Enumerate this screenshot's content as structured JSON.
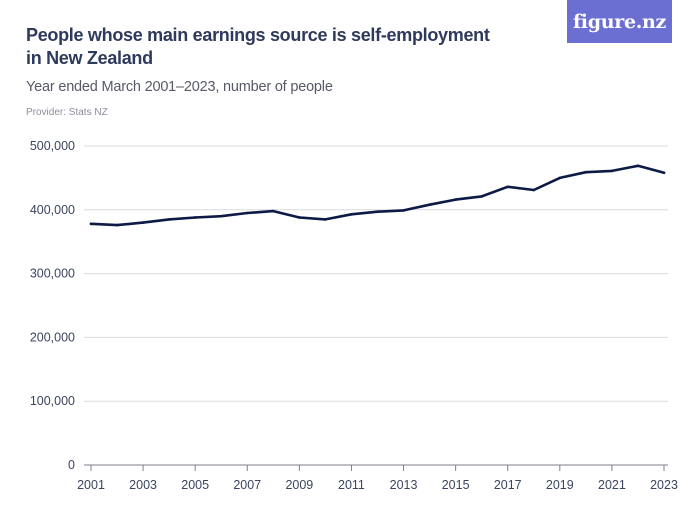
{
  "header": {
    "title": "People whose main earnings source is self-employment in New Zealand",
    "subtitle": "Year ended March 2001–2023, number of people",
    "provider": "Provider: Stats NZ"
  },
  "logo": {
    "text": "figure.nz",
    "background": "#6b6fd1"
  },
  "chart_data": {
    "type": "line",
    "title": "People whose main earnings source is self-employment in New Zealand",
    "subtitle": "Year ended March 2001–2023, number of people",
    "xlabel": "",
    "ylabel": "",
    "ylim": [
      0,
      500000
    ],
    "xlim": [
      2001,
      2023
    ],
    "grid": true,
    "legend": "none",
    "line_color": "#0d1a45",
    "x": [
      2001,
      2002,
      2003,
      2004,
      2005,
      2006,
      2007,
      2008,
      2009,
      2010,
      2011,
      2012,
      2013,
      2014,
      2015,
      2016,
      2017,
      2018,
      2019,
      2020,
      2021,
      2022,
      2023
    ],
    "series": [
      {
        "values": [
          378000,
          376000,
          380000,
          385000,
          388000,
          390000,
          395000,
          398000,
          388000,
          385000,
          393000,
          397000,
          399000,
          408000,
          416000,
          421000,
          436000,
          431000,
          450000,
          459000,
          461000,
          469000,
          458000
        ]
      }
    ],
    "y_ticks": [
      0,
      100000,
      200000,
      300000,
      400000,
      500000
    ],
    "y_tick_labels": [
      "0",
      "100,000",
      "200,000",
      "300,000",
      "400,000",
      "500,000"
    ],
    "x_ticks": [
      2001,
      2003,
      2005,
      2007,
      2009,
      2011,
      2013,
      2015,
      2017,
      2019,
      2021,
      2023
    ],
    "x_tick_labels": [
      "2001",
      "2003",
      "2005",
      "2007",
      "2009",
      "2011",
      "2013",
      "2015",
      "2017",
      "2019",
      "2021",
      "2023"
    ]
  }
}
